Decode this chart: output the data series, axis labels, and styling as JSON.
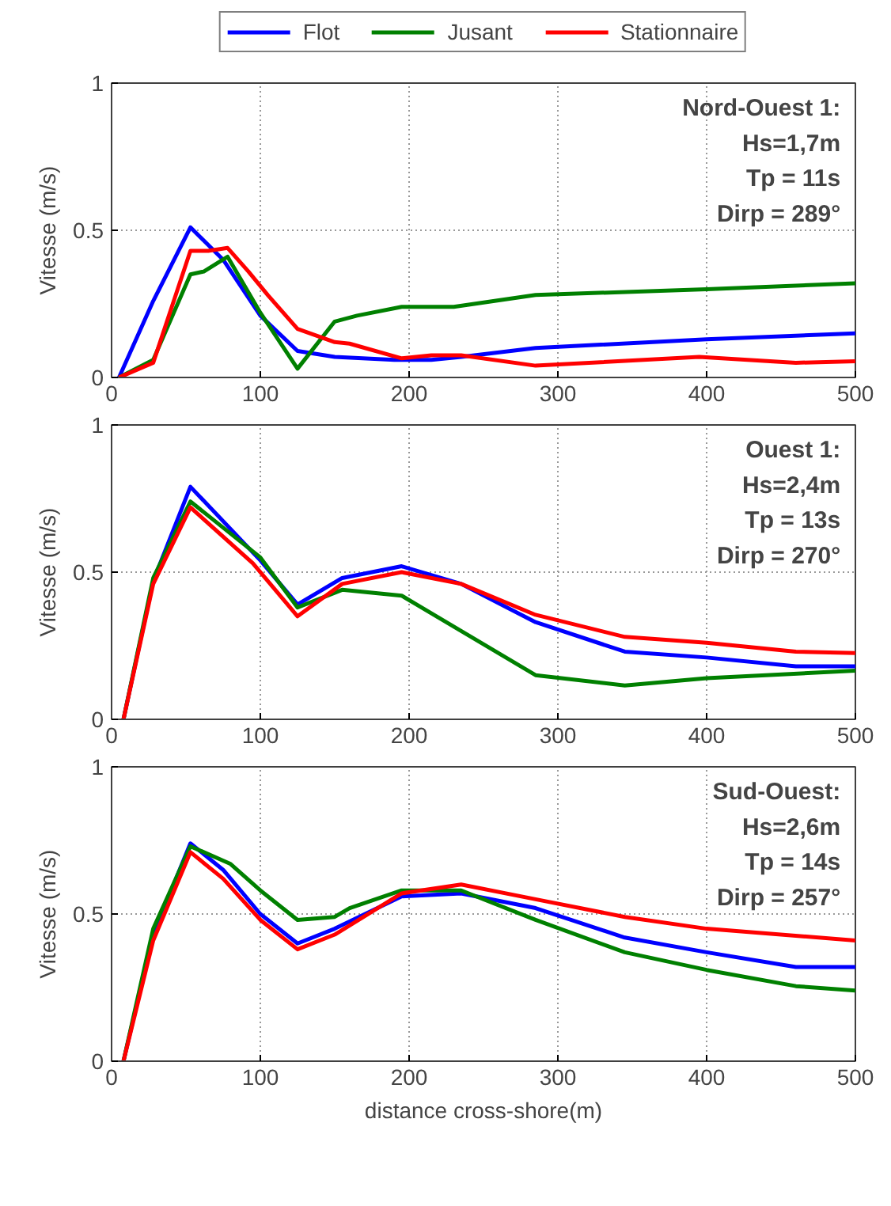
{
  "chart_data": [
    {
      "type": "line",
      "ylabel": "Vitesse (m/s)",
      "xlim": [
        0,
        500
      ],
      "ylim": [
        0,
        1
      ],
      "xticks": [
        0,
        100,
        200,
        300,
        400,
        500
      ],
      "yticks": [
        0,
        0.5,
        1
      ],
      "grid": true,
      "legend": "top",
      "line_style": "solid",
      "marker": "none",
      "annotations": [
        "Nord-Ouest 1:",
        "Hs=1,7m",
        "Tp = 11s",
        "Dirp = 289°"
      ],
      "series": [
        {
          "name": "Flot",
          "color": "#0000ff",
          "x": [
            5,
            28,
            53,
            75,
            100,
            125,
            150,
            190,
            215,
            235,
            285,
            400,
            500
          ],
          "values": [
            0,
            0.26,
            0.51,
            0.4,
            0.21,
            0.09,
            0.07,
            0.06,
            0.06,
            0.07,
            0.1,
            0.13,
            0.15
          ]
        },
        {
          "name": "Jusant",
          "color": "#008000",
          "x": [
            5,
            28,
            53,
            62,
            78,
            100,
            125,
            150,
            165,
            195,
            230,
            285,
            400,
            500
          ],
          "values": [
            0,
            0.06,
            0.35,
            0.36,
            0.41,
            0.22,
            0.03,
            0.19,
            0.21,
            0.24,
            0.24,
            0.28,
            0.3,
            0.32
          ]
        },
        {
          "name": "Stationnaire",
          "color": "#ff0000",
          "x": [
            5,
            28,
            53,
            65,
            78,
            92,
            105,
            125,
            150,
            160,
            195,
            215,
            235,
            285,
            395,
            460,
            500
          ],
          "values": [
            0,
            0.05,
            0.43,
            0.43,
            0.44,
            0.36,
            0.28,
            0.165,
            0.12,
            0.115,
            0.065,
            0.075,
            0.075,
            0.04,
            0.07,
            0.05,
            0.055
          ]
        }
      ]
    },
    {
      "type": "line",
      "ylabel": "Vitesse (m/s)",
      "xlim": [
        0,
        500
      ],
      "ylim": [
        0,
        1
      ],
      "xticks": [
        0,
        100,
        200,
        300,
        400,
        500
      ],
      "yticks": [
        0,
        0.5,
        1
      ],
      "grid": true,
      "line_style": "solid",
      "marker": "none",
      "annotations": [
        "Ouest 1:",
        "Hs=2,4m",
        "Tp = 13s",
        "Dirp = 270°"
      ],
      "series": [
        {
          "color": "#0000ff",
          "x": [
            8,
            28,
            53,
            100,
            125,
            155,
            195,
            235,
            285,
            345,
            400,
            460,
            500
          ],
          "values": [
            0,
            0.47,
            0.79,
            0.54,
            0.39,
            0.48,
            0.52,
            0.46,
            0.33,
            0.23,
            0.21,
            0.18,
            0.18
          ]
        },
        {
          "color": "#008000",
          "x": [
            8,
            28,
            53,
            100,
            125,
            155,
            195,
            235,
            285,
            345,
            400,
            500
          ],
          "values": [
            0,
            0.48,
            0.74,
            0.55,
            0.38,
            0.44,
            0.42,
            0.3,
            0.15,
            0.115,
            0.14,
            0.165
          ]
        },
        {
          "color": "#ff0000",
          "x": [
            8,
            28,
            53,
            95,
            125,
            155,
            195,
            235,
            285,
            345,
            400,
            460,
            500
          ],
          "values": [
            0,
            0.46,
            0.72,
            0.53,
            0.35,
            0.46,
            0.5,
            0.46,
            0.355,
            0.28,
            0.26,
            0.23,
            0.225
          ]
        }
      ]
    },
    {
      "type": "line",
      "xlabel": "distance cross-shore(m)",
      "ylabel": "Vitesse (m/s)",
      "xlim": [
        0,
        500
      ],
      "ylim": [
        0,
        1
      ],
      "xticks": [
        0,
        100,
        200,
        300,
        400,
        500
      ],
      "yticks": [
        0,
        0.5,
        1
      ],
      "grid": true,
      "line_style": "solid",
      "marker": "none",
      "annotations": [
        "Sud-Ouest:",
        "Hs=2,6m",
        "Tp = 14s",
        "Dirp = 257°"
      ],
      "series": [
        {
          "color": "#0000ff",
          "x": [
            8,
            28,
            53,
            75,
            100,
            125,
            150,
            195,
            235,
            285,
            345,
            400,
            460,
            500
          ],
          "values": [
            0,
            0.43,
            0.74,
            0.65,
            0.5,
            0.4,
            0.45,
            0.56,
            0.57,
            0.52,
            0.42,
            0.37,
            0.32,
            0.32
          ]
        },
        {
          "color": "#008000",
          "x": [
            8,
            28,
            53,
            80,
            100,
            125,
            150,
            160,
            195,
            235,
            285,
            345,
            400,
            460,
            500
          ],
          "values": [
            0,
            0.45,
            0.73,
            0.67,
            0.58,
            0.48,
            0.49,
            0.52,
            0.58,
            0.58,
            0.48,
            0.37,
            0.31,
            0.255,
            0.24
          ]
        },
        {
          "color": "#ff0000",
          "x": [
            8,
            28,
            53,
            75,
            100,
            125,
            150,
            195,
            235,
            285,
            345,
            400,
            500
          ],
          "values": [
            0,
            0.41,
            0.71,
            0.62,
            0.48,
            0.38,
            0.43,
            0.57,
            0.6,
            0.55,
            0.49,
            0.45,
            0.41
          ]
        }
      ]
    }
  ]
}
